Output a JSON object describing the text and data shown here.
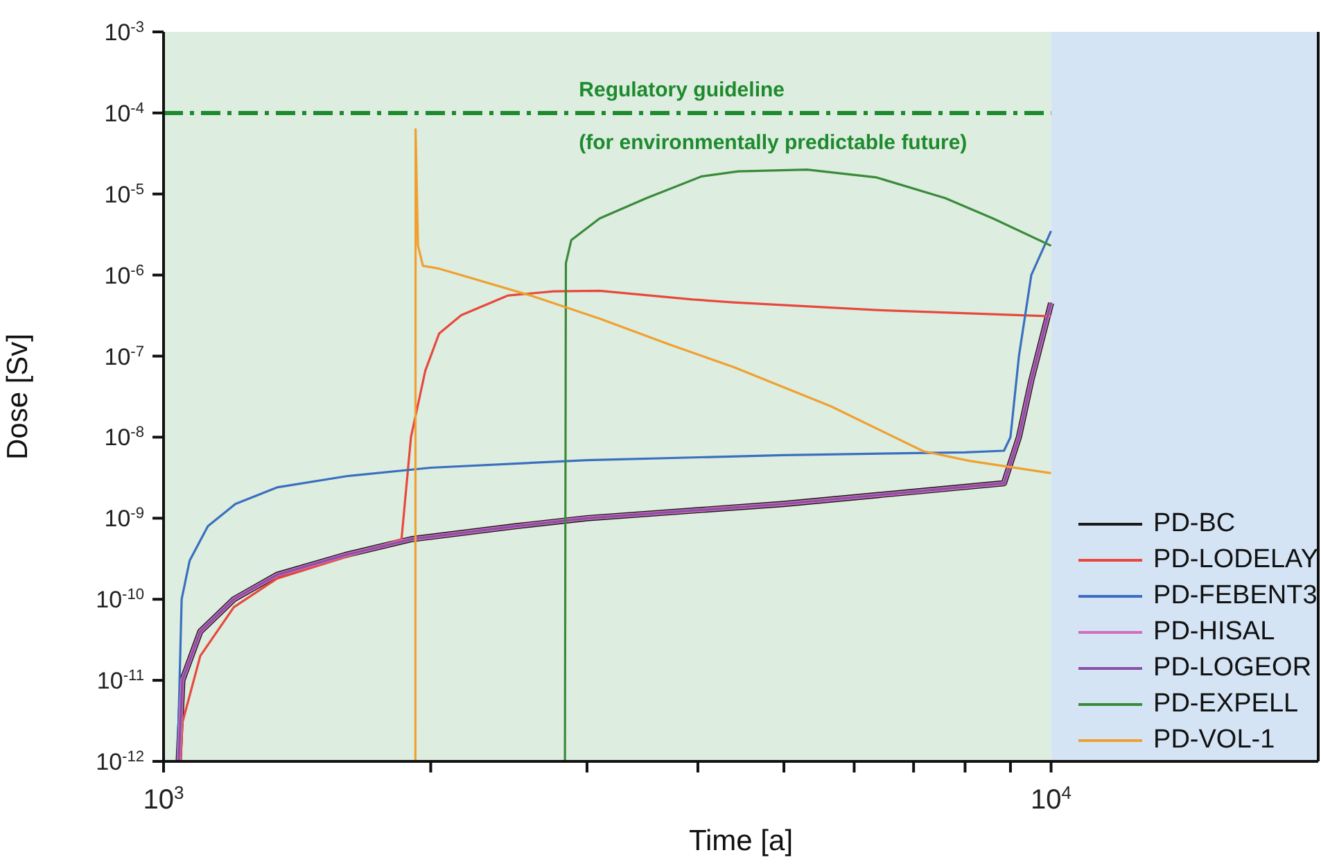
{
  "chart_data": {
    "type": "line",
    "xlabel": "Time [a]",
    "ylabel": "Dose [Sv]",
    "log": "xy",
    "xlim": [
      1000,
      20000
    ],
    "ylim": [
      1e-12,
      0.001
    ],
    "xticks": [
      {
        "value": 1000,
        "label": "10$^{3}$"
      },
      {
        "value": 2000,
        "label": null
      },
      {
        "value": 3000,
        "label": null
      },
      {
        "value": 4000,
        "label": null
      },
      {
        "value": 5000,
        "label": null
      },
      {
        "value": 6000,
        "label": null
      },
      {
        "value": 7000,
        "label": null
      },
      {
        "value": 8000,
        "label": null
      },
      {
        "value": 9000,
        "label": null
      },
      {
        "value": 10000,
        "label": "10$^{4}$"
      }
    ],
    "yticks": [
      {
        "value": 1e-12,
        "label": "10$^{-12}$"
      },
      {
        "value": 1e-11,
        "label": "10$^{-11}$"
      },
      {
        "value": 1e-10,
        "label": "10$^{-10}$"
      },
      {
        "value": 1e-09,
        "label": "10$^{-9}$"
      },
      {
        "value": 1e-08,
        "label": "10$^{-8}$"
      },
      {
        "value": 1e-07,
        "label": "10$^{-7}$"
      },
      {
        "value": 1e-06,
        "label": "10$^{-6}$"
      },
      {
        "value": 1e-05,
        "label": "10$^{-5}$"
      },
      {
        "value": 0.0001,
        "label": "10$^{-4}$"
      },
      {
        "value": 0.001,
        "label": "10$^{-3}$"
      }
    ],
    "grid": false,
    "legend": "bottom right",
    "line_style": "solid",
    "marker": "none",
    "series": [
      {
        "name": "PD-BC",
        "color": "#1a1a1a",
        "x": [
          1040,
          1050,
          1100,
          1200,
          1342,
          1600,
          1900,
          2500,
          3000,
          5000,
          8850,
          9200,
          9500,
          10000
        ],
        "values": [
          1e-12,
          1e-11,
          4e-11,
          1e-10,
          2e-10,
          3.5e-10,
          5.5e-10,
          8e-10,
          1e-09,
          1.5e-09,
          2.7e-09,
          1e-08,
          5e-08,
          4.5e-07
        ]
      },
      {
        "name": "PD-LODELAY",
        "color": "#e8483c",
        "x": [
          1045,
          1050,
          1100,
          1200,
          1342,
          1600,
          1854,
          1900,
          1972,
          2044,
          2165,
          2445,
          2754,
          3100,
          3945,
          4391,
          6358,
          10000
        ],
        "values": [
          1e-12,
          3e-12,
          2e-11,
          8e-11,
          1.8e-10,
          3.3e-10,
          5.5e-10,
          1e-08,
          6.6e-08,
          1.9e-07,
          3.2e-07,
          5.6e-07,
          6.3e-07,
          6.4e-07,
          5e-07,
          4.6e-07,
          3.7e-07,
          3.1e-07
        ]
      },
      {
        "name": "PD-FEBENT3",
        "color": "#3a6fc0",
        "x": [
          1037,
          1048,
          1070,
          1122,
          1205,
          1342,
          1607,
          2000,
          3000,
          5000,
          8000,
          8850,
          9000,
          9200,
          9500,
          10000
        ],
        "values": [
          1e-12,
          1e-10,
          3e-10,
          8e-10,
          1.5e-09,
          2.4e-09,
          3.3e-09,
          4.2e-09,
          5.2e-09,
          6e-09,
          6.5e-09,
          6.8e-09,
          1e-08,
          1e-07,
          1e-06,
          3.5e-06
        ]
      },
      {
        "name": "PD-HISAL",
        "color": "#d070b8",
        "x": [
          1040,
          1050,
          1100,
          1200,
          1342,
          1600,
          1900,
          2500,
          3000,
          5000,
          8850,
          9200,
          9500,
          10000
        ],
        "values": [
          1e-12,
          1e-11,
          4e-11,
          1e-10,
          2e-10,
          3.5e-10,
          5.5e-10,
          8e-10,
          1e-09,
          1.5e-09,
          2.7e-09,
          1e-08,
          5e-08,
          4.5e-07
        ]
      },
      {
        "name": "PD-LOGEOR",
        "color": "#8a4fa8",
        "x": [
          1040,
          1050,
          1100,
          1200,
          1342,
          1600,
          1900,
          2500,
          3000,
          5000,
          8850,
          9200,
          9500,
          10000
        ],
        "values": [
          1e-12,
          1e-11,
          4e-11,
          1e-10,
          2e-10,
          3.5e-10,
          5.5e-10,
          8e-10,
          1e-09,
          1.5e-09,
          2.7e-09,
          1e-08,
          5e-08,
          4.6e-07
        ]
      },
      {
        "name": "PD-EXPELL",
        "color": "#3a8a3a",
        "x": [
          2833,
          2840,
          2880,
          3100,
          3500,
          4040,
          4440,
          5310,
          6360,
          7600,
          8600,
          10000
        ],
        "values": [
          1e-12,
          1.4e-06,
          2.7e-06,
          5e-06,
          8.9e-06,
          1.65e-05,
          1.9e-05,
          2e-05,
          1.6e-05,
          8.9e-06,
          5e-06,
          2.3e-06
        ]
      },
      {
        "name": "PD-VOL-1",
        "color": "#f0a030",
        "x": [
          1922,
          1923,
          1935,
          1960,
          2044,
          2165,
          2590,
          3100,
          3710,
          4391,
          5650,
          7180,
          8090,
          10000
        ],
        "values": [
          1e-12,
          6.3e-05,
          2.3e-06,
          1.3e-06,
          1.2e-06,
          1e-06,
          5.6e-07,
          2.9e-07,
          1.4e-07,
          7.3e-08,
          2.4e-08,
          6.7e-09,
          5.1e-09,
          3.6e-09
        ]
      }
    ],
    "ref_lines": [
      {
        "axis": "y",
        "value": 0.0001,
        "label": "Regulatory guideline",
        "color": "#1e8a2e",
        "line_style": "dashdot"
      }
    ],
    "annotations": [
      "(for environmentally predictable future)"
    ],
    "bands": [
      {
        "axis": "x",
        "from": 1000,
        "to": 10000,
        "color": "#ddeddf"
      },
      {
        "axis": "x",
        "from": 10000,
        "to": 20000,
        "color": "#d4e4f5"
      }
    ]
  }
}
